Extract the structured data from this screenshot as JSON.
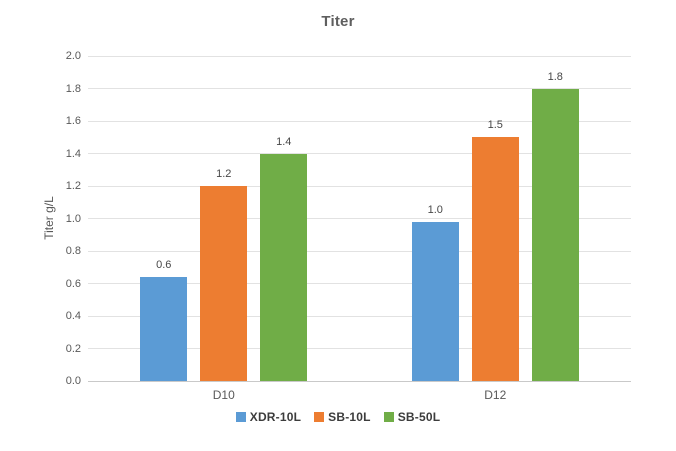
{
  "chart_data": {
    "type": "bar",
    "title": "Titer",
    "xlabel": "",
    "ylabel": "Titer g/L",
    "categories": [
      "D10",
      "D12"
    ],
    "series": [
      {
        "name": "XDR-10L",
        "color": "#5B9BD5",
        "values": [
          0.64,
          0.98
        ],
        "data_labels": [
          "0.6",
          "1.0"
        ]
      },
      {
        "name": "SB-10L",
        "color": "#ED7D31",
        "values": [
          1.2,
          1.5
        ],
        "data_labels": [
          "1.2",
          "1.5"
        ]
      },
      {
        "name": "SB-50L",
        "color": "#70AD47",
        "values": [
          1.4,
          1.8
        ],
        "data_labels": [
          "1.4",
          "1.8"
        ]
      }
    ],
    "ylim": [
      0,
      2.0
    ],
    "ytick_step": 0.2,
    "ytick_labels": [
      "0.0",
      "0.2",
      "0.4",
      "0.6",
      "0.8",
      "1.0",
      "1.2",
      "1.4",
      "1.6",
      "1.8",
      "2.0"
    ],
    "grid": true,
    "legend_position": "bottom"
  },
  "colors": {
    "background": "#ffffff",
    "grid": "#e2e2e2",
    "axis_line": "#c9c9c9",
    "title_text": "#5f5f5f",
    "tick_text": "#595959",
    "label_text": "#474747",
    "legend_text": "#3c3c3c"
  }
}
